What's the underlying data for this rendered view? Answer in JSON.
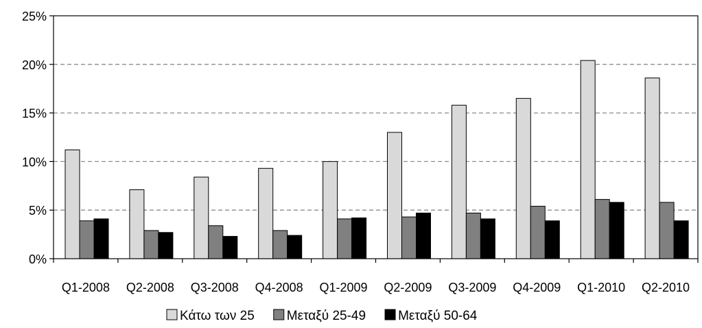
{
  "chart_data": {
    "type": "bar",
    "categories": [
      "Q1-2008",
      "Q2-2008",
      "Q3-2008",
      "Q4-2008",
      "Q1-2009",
      "Q2-2009",
      "Q3-2009",
      "Q4-2009",
      "Q1-2010",
      "Q2-2010"
    ],
    "series": [
      {
        "name": "Κάτω των 25",
        "color": "#d9d9d9",
        "values": [
          11.2,
          7.1,
          8.4,
          9.3,
          10.0,
          13.0,
          15.8,
          16.5,
          20.4,
          18.6
        ]
      },
      {
        "name": "Μεταξύ 25-49",
        "color": "#808080",
        "values": [
          3.9,
          2.9,
          3.4,
          2.9,
          4.1,
          4.3,
          4.7,
          5.4,
          6.1,
          5.8
        ]
      },
      {
        "name": "Μεταξύ 50-64",
        "color": "#000000",
        "values": [
          4.1,
          2.7,
          2.3,
          2.4,
          4.2,
          4.7,
          4.1,
          3.9,
          5.8,
          3.9
        ]
      }
    ],
    "ylim": [
      0,
      25
    ],
    "y_ticks": [
      "0%",
      "5%",
      "10%",
      "15%",
      "20%",
      "25%"
    ],
    "y_tick_values": [
      0,
      5,
      10,
      15,
      20,
      25
    ],
    "grid": "horizontal-dashed",
    "legend_position": "bottom"
  }
}
